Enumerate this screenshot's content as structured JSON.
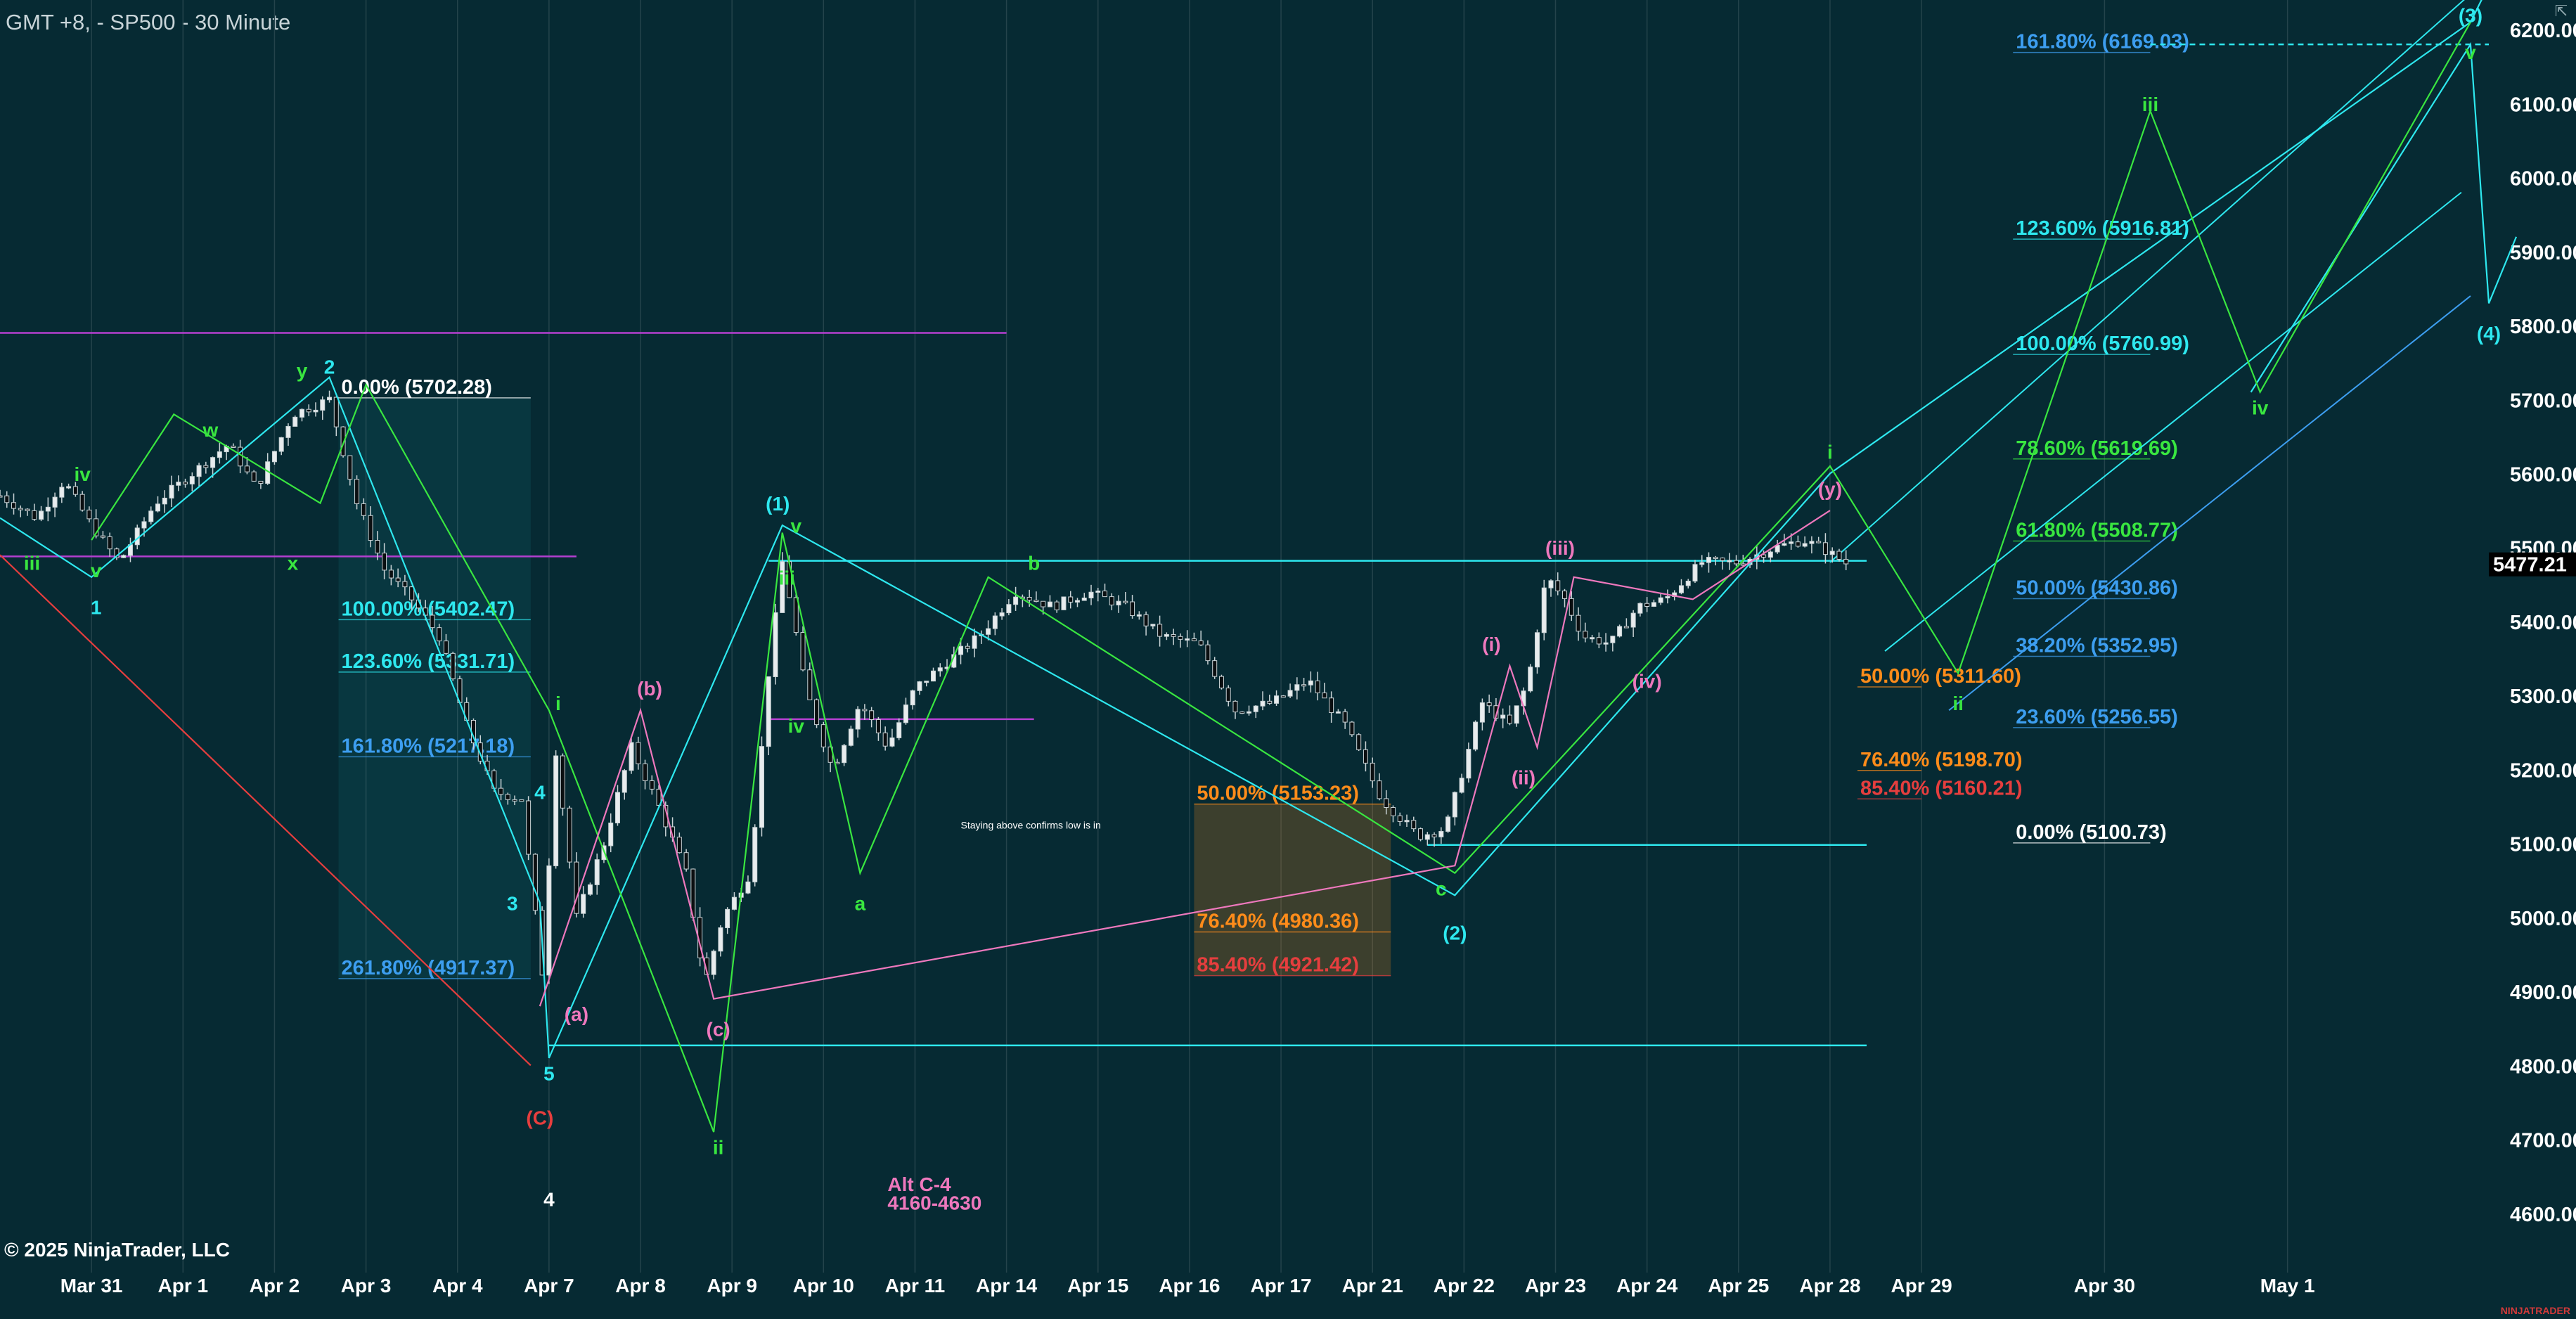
{
  "header": {
    "title": "GMT +8, - SP500 - 30 Minute"
  },
  "footer": {
    "copyright": "© 2025 NinjaTrader, LLC",
    "brand": "NINJATRADER"
  },
  "corner_icon": "collapse-arrow-icon",
  "colors": {
    "background": "#062a33",
    "grid": "#24434b",
    "cyan": "#2ee8ef",
    "green": "#39e640",
    "pink": "#ee78bd",
    "purple": "#b43fd0",
    "white": "#ffffff",
    "blue": "#3d9ef0",
    "orange": "#ff8c1a",
    "red": "#e63e3e"
  },
  "chart_data": {
    "type": "candlestick",
    "symbol": "SP500",
    "interval": "30 Minute",
    "timezone": "GMT +8",
    "ylim": [
      4520,
      6240
    ],
    "last_price": "5477.21",
    "x_ticks": [
      "Mar 31",
      "Apr 1",
      "Apr 2",
      "Apr 3",
      "Apr 4",
      "Apr 7",
      "Apr 8",
      "Apr 9",
      "Apr 10",
      "Apr 11",
      "Apr 14",
      "Apr 15",
      "Apr 16",
      "Apr 17",
      "Apr 21",
      "Apr 22",
      "Apr 23",
      "Apr 24",
      "Apr 25",
      "Apr 28",
      "Apr 29",
      "Apr 30",
      "May 1"
    ],
    "x_tick_pos": [
      0.3,
      1.3,
      2.3,
      3.3,
      4.3,
      5.3,
      6.3,
      7.3,
      8.3,
      9.3,
      10.3,
      11.3,
      12.3,
      13.3,
      14.3,
      15.3,
      16.3,
      17.3,
      18.3,
      19.3,
      20.3,
      22.3,
      24.3
    ],
    "x_range": [
      -0.7,
      26.5
    ],
    "y_ticks": [
      4600,
      4700,
      4800,
      4900,
      5000,
      5100,
      5200,
      5300,
      5400,
      5500,
      5600,
      5700,
      5800,
      5900,
      6000,
      6100,
      6200
    ],
    "y_tick_labels": [
      "4600.00",
      "4700.00",
      "4800.00",
      "4900.00",
      "5000.00",
      "5100.00",
      "5200.00",
      "5300.00",
      "5400.00",
      "5500.00",
      "5600.00",
      "5700.00",
      "5800.00",
      "5900.00",
      "6000.00",
      "6100.00",
      "6200.00"
    ],
    "price_path": [
      [
        -0.7,
        5570
      ],
      [
        -0.3,
        5540
      ],
      [
        0,
        5590
      ],
      [
        0.3,
        5530
      ],
      [
        0.6,
        5480
      ],
      [
        1,
        5560
      ],
      [
        1.4,
        5600
      ],
      [
        1.8,
        5640
      ],
      [
        2.1,
        5580
      ],
      [
        2.5,
        5680
      ],
      [
        2.9,
        5700
      ],
      [
        3.2,
        5560
      ],
      [
        3.5,
        5470
      ],
      [
        3.8,
        5430
      ],
      [
        4.1,
        5380
      ],
      [
        4.4,
        5260
      ],
      [
        4.7,
        5170
      ],
      [
        5,
        5160
      ],
      [
        5.25,
        4900
      ],
      [
        5.35,
        5250
      ],
      [
        5.6,
        5000
      ],
      [
        5.9,
        5100
      ],
      [
        6.2,
        5230
      ],
      [
        6.5,
        5150
      ],
      [
        6.8,
        5060
      ],
      [
        7,
        4910
      ],
      [
        7.2,
        5000
      ],
      [
        7.5,
        5060
      ],
      [
        7.7,
        5330
      ],
      [
        7.85,
        5480
      ],
      [
        7.95,
        5420
      ],
      [
        8.1,
        5310
      ],
      [
        8.4,
        5200
      ],
      [
        8.7,
        5290
      ],
      [
        9,
        5230
      ],
      [
        9.3,
        5310
      ],
      [
        9.6,
        5340
      ],
      [
        10,
        5380
      ],
      [
        10.4,
        5440
      ],
      [
        10.8,
        5420
      ],
      [
        11.2,
        5440
      ],
      [
        11.6,
        5420
      ],
      [
        12,
        5380
      ],
      [
        12.4,
        5370
      ],
      [
        12.8,
        5280
      ],
      [
        13.2,
        5290
      ],
      [
        13.6,
        5320
      ],
      [
        14,
        5260
      ],
      [
        14.4,
        5160
      ],
      [
        14.8,
        5110
      ],
      [
        15.1,
        5120
      ],
      [
        15.5,
        5290
      ],
      [
        15.8,
        5260
      ],
      [
        16,
        5320
      ],
      [
        16.2,
        5460
      ],
      [
        16.4,
        5430
      ],
      [
        16.6,
        5380
      ],
      [
        16.9,
        5370
      ],
      [
        17.2,
        5420
      ],
      [
        17.5,
        5430
      ],
      [
        17.9,
        5480
      ],
      [
        18.3,
        5480
      ],
      [
        18.7,
        5500
      ],
      [
        19,
        5510
      ],
      [
        19.2,
        5500
      ],
      [
        19.5,
        5477
      ]
    ],
    "horizontal_lines": [
      {
        "y": 5790,
        "x1": -0.7,
        "x2": 10.3,
        "color": "purple"
      },
      {
        "y": 5488,
        "x1": -0.7,
        "x2": 5.6,
        "color": "purple"
      },
      {
        "y": 5268,
        "x1": 7.7,
        "x2": 10.6,
        "color": "purple"
      },
      {
        "y": 5482,
        "x1": 7.7,
        "x2": 19.7,
        "color": "cyan"
      },
      {
        "y": 4827,
        "x1": 5.3,
        "x2": 19.7,
        "color": "cyan"
      },
      {
        "y": 5098,
        "x1": 14.9,
        "x2": 19.7,
        "color": "cyan"
      },
      {
        "y": 6180,
        "x1": 22.8,
        "x2": 26.5,
        "color": "cyan",
        "dashed": true
      }
    ],
    "fib_groups": [
      {
        "name": "fib-left",
        "x1": 3,
        "x2": 5.1,
        "levels": [
          {
            "pct": "0.00%",
            "price": "5702.28",
            "y": 5702.28,
            "color": "white"
          },
          {
            "pct": "100.00%",
            "price": "5402.47",
            "y": 5402.47,
            "color": "cyan"
          },
          {
            "pct": "123.60%",
            "price": "5331.71",
            "y": 5331.71,
            "color": "cyan"
          },
          {
            "pct": "161.80%",
            "price": "5217.18",
            "y": 5217.18,
            "color": "blue"
          },
          {
            "pct": "261.80%",
            "price": "4917.37",
            "y": 4917.37,
            "color": "blue"
          }
        ]
      },
      {
        "name": "fib-mid",
        "x1": 12.35,
        "x2": 14.5,
        "levels": [
          {
            "pct": "50.00%",
            "price": "5153.23",
            "y": 5153.23,
            "color": "orange"
          },
          {
            "pct": "76.40%",
            "price": "4980.36",
            "y": 4980.36,
            "color": "orange"
          },
          {
            "pct": "85.40%",
            "price": "4921.42",
            "y": 4921.42,
            "color": "red"
          }
        ]
      },
      {
        "name": "fib-right-retrace",
        "x1": 19.6,
        "x2": 20.3,
        "levels": [
          {
            "pct": "50.00%",
            "price": "5311.60",
            "y": 5311.6,
            "color": "orange"
          },
          {
            "pct": "76.40%",
            "price": "5198.70",
            "y": 5198.7,
            "color": "orange"
          },
          {
            "pct": "85.40%",
            "price": "5160.21",
            "y": 5160.21,
            "color": "red"
          }
        ]
      },
      {
        "name": "fib-right-extension",
        "x1": 21.3,
        "x2": 22.8,
        "levels": [
          {
            "pct": "161.80%",
            "price": "6169.03",
            "y": 6169.03,
            "color": "blue"
          },
          {
            "pct": "123.60%",
            "price": "5916.81",
            "y": 5916.81,
            "color": "cyan"
          },
          {
            "pct": "100.00%",
            "price": "5760.99",
            "y": 5760.99,
            "color": "cyan"
          },
          {
            "pct": "78.60%",
            "price": "5619.69",
            "y": 5619.69,
            "color": "green"
          },
          {
            "pct": "61.80%",
            "price": "5508.77",
            "y": 5508.77,
            "color": "green"
          },
          {
            "pct": "50.00%",
            "price": "5430.86",
            "y": 5430.86,
            "color": "blue"
          },
          {
            "pct": "38.20%",
            "price": "5352.95",
            "y": 5352.95,
            "color": "blue"
          },
          {
            "pct": "23.60%",
            "price": "5256.55",
            "y": 5256.55,
            "color": "blue"
          },
          {
            "pct": "0.00%",
            "price": "5100.73",
            "y": 5100.73,
            "color": "white"
          }
        ]
      }
    ],
    "wave_lines": [
      {
        "color": "cyan",
        "points": [
          [
            -0.7,
            5540
          ],
          [
            0.3,
            5460
          ],
          [
            2.9,
            5730
          ],
          [
            5.2,
            5020
          ],
          [
            5.3,
            4810
          ],
          [
            7.85,
            5530
          ],
          [
            15.2,
            5030
          ],
          [
            19.3,
            5600
          ],
          [
            26.3,
            6210
          ],
          [
            26.5,
            6260
          ]
        ]
      },
      {
        "color": "cyan",
        "points": [
          [
            23.9,
            5710
          ],
          [
            26.3,
            6180
          ],
          [
            26.5,
            5830
          ],
          [
            26.8,
            5920
          ]
        ]
      },
      {
        "color": "green",
        "points": [
          [
            0.3,
            5510
          ],
          [
            1.2,
            5680
          ],
          [
            2.8,
            5560
          ],
          [
            3.3,
            5720
          ],
          [
            5.3,
            5280
          ],
          [
            7.1,
            4710
          ],
          [
            7.85,
            5520
          ],
          [
            8.7,
            5060
          ],
          [
            10.1,
            5460
          ],
          [
            15.2,
            5060
          ],
          [
            19.3,
            5610
          ],
          [
            20.7,
            5330
          ],
          [
            22.8,
            6090
          ],
          [
            24,
            5710
          ],
          [
            26.3,
            6210
          ]
        ]
      },
      {
        "color": "pink",
        "points": [
          [
            5.2,
            4880
          ],
          [
            6.3,
            5280
          ],
          [
            7.1,
            4890
          ],
          [
            15.2,
            5070
          ],
          [
            15.8,
            5340
          ],
          [
            16.1,
            5230
          ],
          [
            16.5,
            5460
          ],
          [
            17.8,
            5430
          ],
          [
            19.3,
            5550
          ]
        ]
      },
      {
        "color": "red",
        "points": [
          [
            -0.7,
            5490
          ],
          [
            5.1,
            4800
          ]
        ]
      }
    ],
    "channels": [
      {
        "color": "cyan",
        "points": [
          [
            19.3,
            5480
          ],
          [
            26.5,
            6270
          ]
        ]
      },
      {
        "color": "cyan",
        "points": [
          [
            19.9,
            5360
          ],
          [
            26.2,
            5980
          ]
        ]
      },
      {
        "color": "blue",
        "points": [
          [
            20.6,
            5280
          ],
          [
            26.3,
            5840
          ]
        ]
      }
    ],
    "wave_labels": [
      {
        "text": "iii",
        "x": -0.35,
        "y": 5470,
        "color": "green"
      },
      {
        "text": "iv",
        "x": 0.2,
        "y": 5590,
        "color": "green"
      },
      {
        "text": "v",
        "x": 0.35,
        "y": 5460,
        "color": "green"
      },
      {
        "text": "1",
        "x": 0.35,
        "y": 5410,
        "color": "cyan"
      },
      {
        "text": "w",
        "x": 1.6,
        "y": 5650,
        "color": "green"
      },
      {
        "text": "x",
        "x": 2.5,
        "y": 5470,
        "color": "green"
      },
      {
        "text": "y",
        "x": 2.6,
        "y": 5730,
        "color": "green"
      },
      {
        "text": "2",
        "x": 2.9,
        "y": 5735,
        "color": "cyan"
      },
      {
        "text": "4",
        "x": 5.2,
        "y": 5160,
        "color": "cyan"
      },
      {
        "text": "3",
        "x": 4.9,
        "y": 5010,
        "color": "cyan"
      },
      {
        "text": "i",
        "x": 5.4,
        "y": 5280,
        "color": "green"
      },
      {
        "text": "5",
        "x": 5.3,
        "y": 4780,
        "color": "cyan"
      },
      {
        "text": "(C)",
        "x": 5.2,
        "y": 4720,
        "color": "red"
      },
      {
        "text": "4",
        "x": 5.3,
        "y": 4610,
        "color": "white"
      },
      {
        "text": "(a)",
        "x": 5.6,
        "y": 4860,
        "color": "pink"
      },
      {
        "text": "(b)",
        "x": 6.4,
        "y": 5300,
        "color": "pink"
      },
      {
        "text": "(c)",
        "x": 7.15,
        "y": 4840,
        "color": "pink"
      },
      {
        "text": "ii",
        "x": 7.15,
        "y": 4680,
        "color": "green"
      },
      {
        "text": "(1)",
        "x": 7.8,
        "y": 5550,
        "color": "cyan"
      },
      {
        "text": "v",
        "x": 8,
        "y": 5520,
        "color": "green"
      },
      {
        "text": "iii",
        "x": 7.9,
        "y": 5450,
        "color": "green"
      },
      {
        "text": "iv",
        "x": 8,
        "y": 5250,
        "color": "green"
      },
      {
        "text": "a",
        "x": 8.7,
        "y": 5010,
        "color": "green"
      },
      {
        "text": "b",
        "x": 10.6,
        "y": 5470,
        "color": "green"
      },
      {
        "text": "Alt C-4",
        "x": 9.0,
        "y": 4630,
        "color": "pink",
        "anchor": "start"
      },
      {
        "text": "4160-4630",
        "x": 9.0,
        "y": 4605,
        "color": "pink",
        "anchor": "start"
      },
      {
        "text": "c",
        "x": 15.05,
        "y": 5030,
        "color": "green"
      },
      {
        "text": "(2)",
        "x": 15.2,
        "y": 4970,
        "color": "cyan"
      },
      {
        "text": "(i)",
        "x": 15.6,
        "y": 5360,
        "color": "pink"
      },
      {
        "text": "(ii)",
        "x": 15.95,
        "y": 5180,
        "color": "pink"
      },
      {
        "text": "(iii)",
        "x": 16.35,
        "y": 5490,
        "color": "pink"
      },
      {
        "text": "(iv)",
        "x": 17.3,
        "y": 5310,
        "color": "pink"
      },
      {
        "text": "i",
        "x": 19.3,
        "y": 5620,
        "color": "green"
      },
      {
        "text": "(y)",
        "x": 19.3,
        "y": 5570,
        "color": "pink"
      },
      {
        "text": "ii",
        "x": 20.7,
        "y": 5280,
        "color": "green"
      },
      {
        "text": "iii",
        "x": 22.8,
        "y": 6090,
        "color": "green"
      },
      {
        "text": "iv",
        "x": 24,
        "y": 5680,
        "color": "green"
      },
      {
        "text": "v",
        "x": 26.3,
        "y": 6160,
        "color": "green"
      },
      {
        "text": "(3)",
        "x": 26.3,
        "y": 6210,
        "color": "cyan"
      },
      {
        "text": "(4)",
        "x": 26.5,
        "y": 5780,
        "color": "cyan"
      }
    ],
    "annotations": [
      {
        "text": "Staying above confirms low is in",
        "x": 9.8,
        "y": 5120,
        "color": "white"
      }
    ]
  }
}
